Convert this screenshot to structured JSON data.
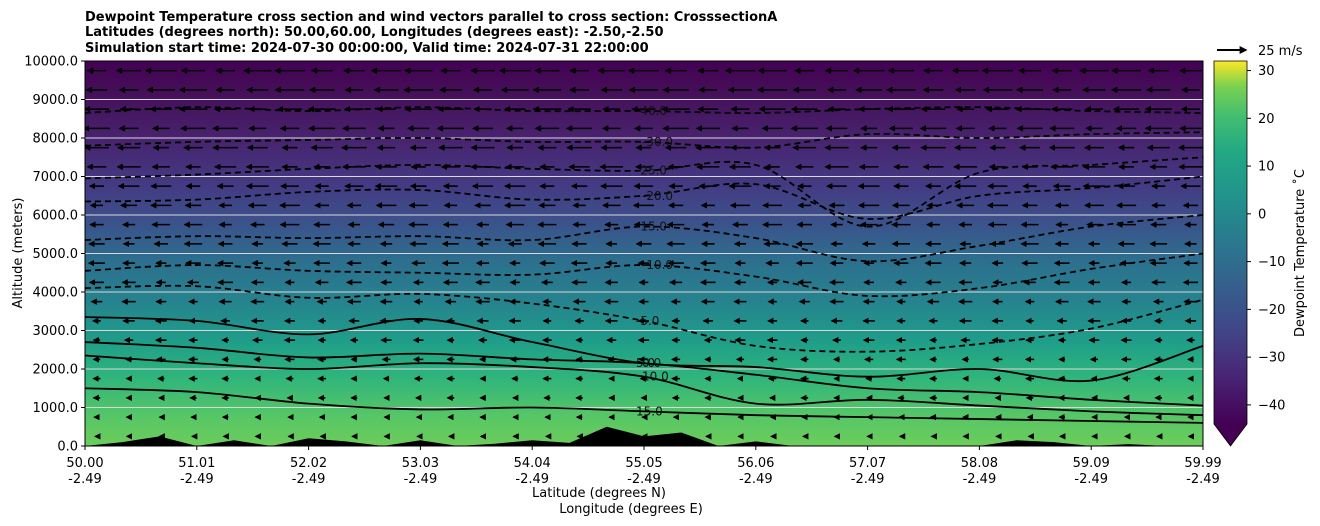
{
  "title": {
    "line1": "Dewpoint Temperature cross section and wind vectors parallel to cross section: CrosssectionA",
    "line2": "Latitudes (degrees north): 50.00,60.00, Longitudes (degrees east): -2.50,-2.50",
    "line3": "Simulation start time: 2024-07-30 00:00:00, Valid time: 2024-07-31 22:00:00"
  },
  "chart_data": {
    "type": "heatmap",
    "ylabel": "Altitude (meters)",
    "xlabel_lat": "Latitude (degrees N)",
    "xlabel_lon": "Longitude (degrees E)",
    "ylim": [
      0,
      10000
    ],
    "y_ticks": [
      "0.0",
      "1000.0",
      "2000.0",
      "3000.0",
      "4000.0",
      "5000.0",
      "6000.0",
      "7000.0",
      "8000.0",
      "9000.0",
      "10000.0"
    ],
    "x_ticks": [
      {
        "lat": "50.00",
        "lon": "-2.49"
      },
      {
        "lat": "51.01",
        "lon": "-2.49"
      },
      {
        "lat": "52.02",
        "lon": "-2.49"
      },
      {
        "lat": "53.03",
        "lon": "-2.49"
      },
      {
        "lat": "54.04",
        "lon": "-2.49"
      },
      {
        "lat": "55.05",
        "lon": "-2.49"
      },
      {
        "lat": "56.06",
        "lon": "-2.49"
      },
      {
        "lat": "57.07",
        "lon": "-2.49"
      },
      {
        "lat": "58.08",
        "lon": "-2.49"
      },
      {
        "lat": "59.09",
        "lon": "-2.49"
      },
      {
        "lat": "59.99",
        "lon": "-2.49"
      }
    ],
    "colorbar": {
      "label": "Dewpoint Temperature ˚C",
      "ticks": [
        "30",
        "20",
        "10",
        "0",
        "−10",
        "−20",
        "−30",
        "−40"
      ],
      "range": [
        -44,
        32
      ],
      "colormap": "viridis"
    },
    "wind_key": {
      "label": "25 m/s",
      "value": 25
    },
    "contours": [
      {
        "level": 15,
        "label": "15.0",
        "linestyle": "solid",
        "alt": [
          1500,
          1400,
          1100,
          950,
          1000,
          900,
          800,
          750,
          700,
          650,
          600
        ]
      },
      {
        "level": 10,
        "label": "10.0",
        "linestyle": "solid",
        "alt": [
          2350,
          2150,
          2000,
          2150,
          2050,
          1800,
          1100,
          1200,
          1050,
          900,
          800
        ]
      },
      {
        "level": 5,
        "label": "5.0",
        "linestyle": "solid",
        "alt": [
          2700,
          2550,
          2300,
          2400,
          2250,
          2150,
          1850,
          1500,
          1400,
          1200,
          1050
        ]
      },
      {
        "level": 0,
        "label": "0.0",
        "linestyle": "solid",
        "alt": [
          3350,
          3250,
          2900,
          3300,
          2700,
          2150,
          2050,
          1800,
          2000,
          1700,
          2600
        ]
      },
      {
        "level": -5,
        "label": "-5.0",
        "linestyle": "dashed",
        "alt": [
          4100,
          4150,
          3850,
          3950,
          3700,
          3250,
          2600,
          2450,
          2650,
          3050,
          3800
        ]
      },
      {
        "level": -10,
        "label": "-10.0",
        "linestyle": "dashed",
        "alt": [
          4550,
          4700,
          4550,
          4500,
          4450,
          4700,
          4400,
          3900,
          4100,
          4600,
          5000
        ]
      },
      {
        "level": -15,
        "label": "-15.0",
        "linestyle": "dashed",
        "alt": [
          5350,
          5450,
          5400,
          5450,
          5350,
          5700,
          5400,
          4800,
          5200,
          5700,
          6000
        ]
      },
      {
        "level": -20,
        "label": "-20.0",
        "linestyle": "dashed",
        "alt": [
          6350,
          6400,
          6600,
          6650,
          6400,
          6500,
          6800,
          5900,
          6500,
          6700,
          7000
        ]
      },
      {
        "level": -25,
        "label": "-25.0",
        "linestyle": "dashed",
        "alt": [
          6950,
          7050,
          7200,
          7300,
          7200,
          7150,
          7300,
          5700,
          7100,
          7300,
          7500
        ]
      },
      {
        "level": -30,
        "label": "-30.0",
        "linestyle": "dashed",
        "alt": [
          7800,
          7900,
          7950,
          8000,
          7900,
          7900,
          7750,
          8100,
          8000,
          8100,
          8150
        ]
      },
      {
        "level": -40,
        "label": "-40.0",
        "linestyle": "dashed",
        "alt": [
          8650,
          8800,
          8700,
          8800,
          8700,
          8700,
          8650,
          8750,
          8800,
          8700,
          8650
        ]
      }
    ],
    "terrain_alt": [
      0,
      100,
      250,
      0,
      150,
      0,
      200,
      120,
      0,
      150,
      0,
      60,
      150,
      80,
      500,
      250,
      350,
      0,
      120,
      0,
      0,
      0,
      0,
      0,
      0,
      150,
      100,
      0,
      50,
      0,
      0
    ],
    "wind_field_note": "northerly wind vectors (pointing toward lower latitudes), stronger aloft"
  }
}
